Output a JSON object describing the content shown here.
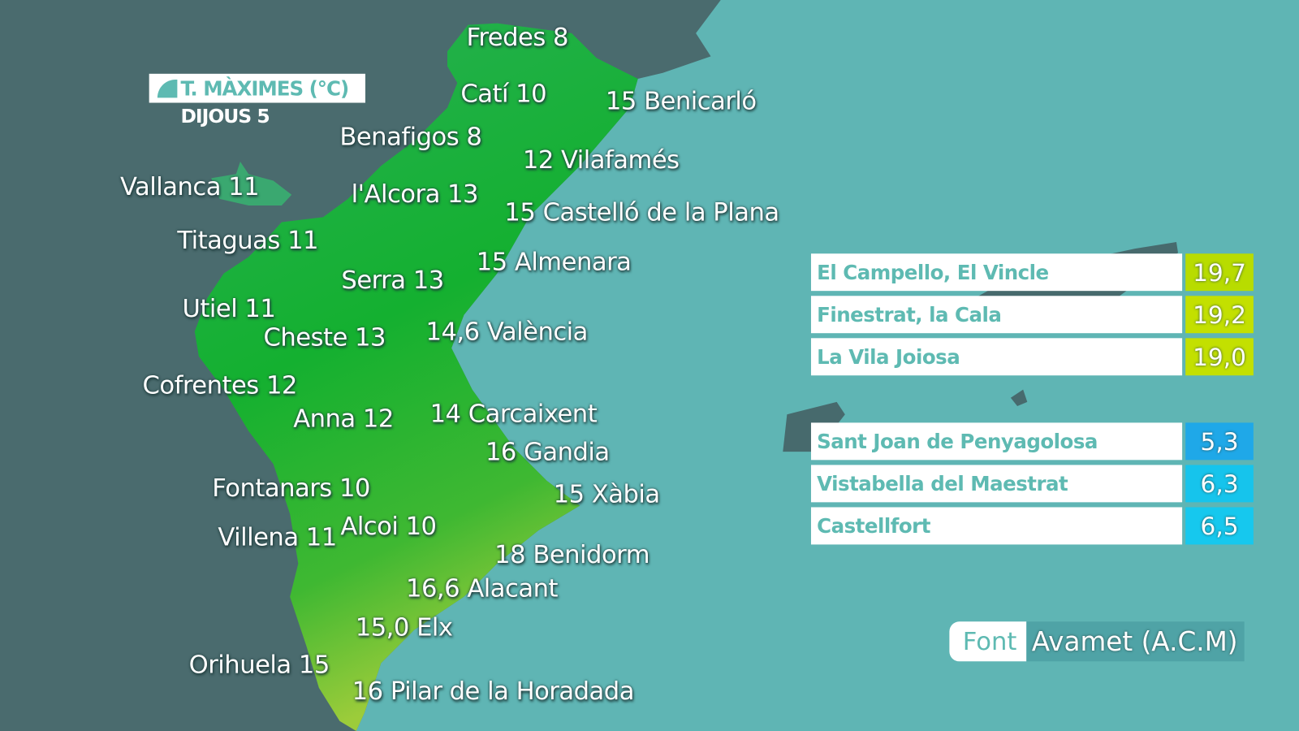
{
  "header": {
    "title": "T. MÀXIMES (°C)",
    "day": "DIJOUS 5"
  },
  "colors": {
    "sea": "#5fb5b4",
    "land_outside": "#4a6b6e",
    "accent": "#5ebab2",
    "warm": "#c3e000",
    "cold": "#1fb6e8"
  },
  "cities": [
    {
      "label": "Fredes 8"
    },
    {
      "label": "Catí 10"
    },
    {
      "label": "15 Benicarló"
    },
    {
      "label": "Benafigos 8"
    },
    {
      "label": "12 Vilafamés"
    },
    {
      "label": "Vallanca 11"
    },
    {
      "label": "l'Alcora 13"
    },
    {
      "label": "15 Castelló de la Plana"
    },
    {
      "label": "Titaguas 11"
    },
    {
      "label": "15 Almenara"
    },
    {
      "label": "Serra 13"
    },
    {
      "label": "Utiel 11"
    },
    {
      "label": "Cheste 13"
    },
    {
      "label": "14,6 València"
    },
    {
      "label": "Cofrentes 12"
    },
    {
      "label": "Anna 12"
    },
    {
      "label": "14 Carcaixent"
    },
    {
      "label": "16 Gandia"
    },
    {
      "label": "Fontanars 10"
    },
    {
      "label": "15 Xàbia"
    },
    {
      "label": "Villena 11"
    },
    {
      "label": "Alcoi 10"
    },
    {
      "label": "18 Benidorm"
    },
    {
      "label": "16,6 Alacant"
    },
    {
      "label": "15,0 Elx"
    },
    {
      "label": "Orihuela 15"
    },
    {
      "label": "16 Pilar de la Horadada"
    }
  ],
  "highest": [
    {
      "name": "El Campello, El Vincle",
      "value": "19,7"
    },
    {
      "name": "Finestrat, la Cala",
      "value": "19,2"
    },
    {
      "name": "La Vila Joiosa",
      "value": "19,0"
    }
  ],
  "lowest": [
    {
      "name": "Sant Joan de Penyagolosa",
      "value": "5,3"
    },
    {
      "name": "Vistabella del Maestrat",
      "value": "6,3"
    },
    {
      "name": "Castellfort",
      "value": "6,5"
    }
  ],
  "source": {
    "label": "Font",
    "value": "Avamet (A.C.M)"
  }
}
